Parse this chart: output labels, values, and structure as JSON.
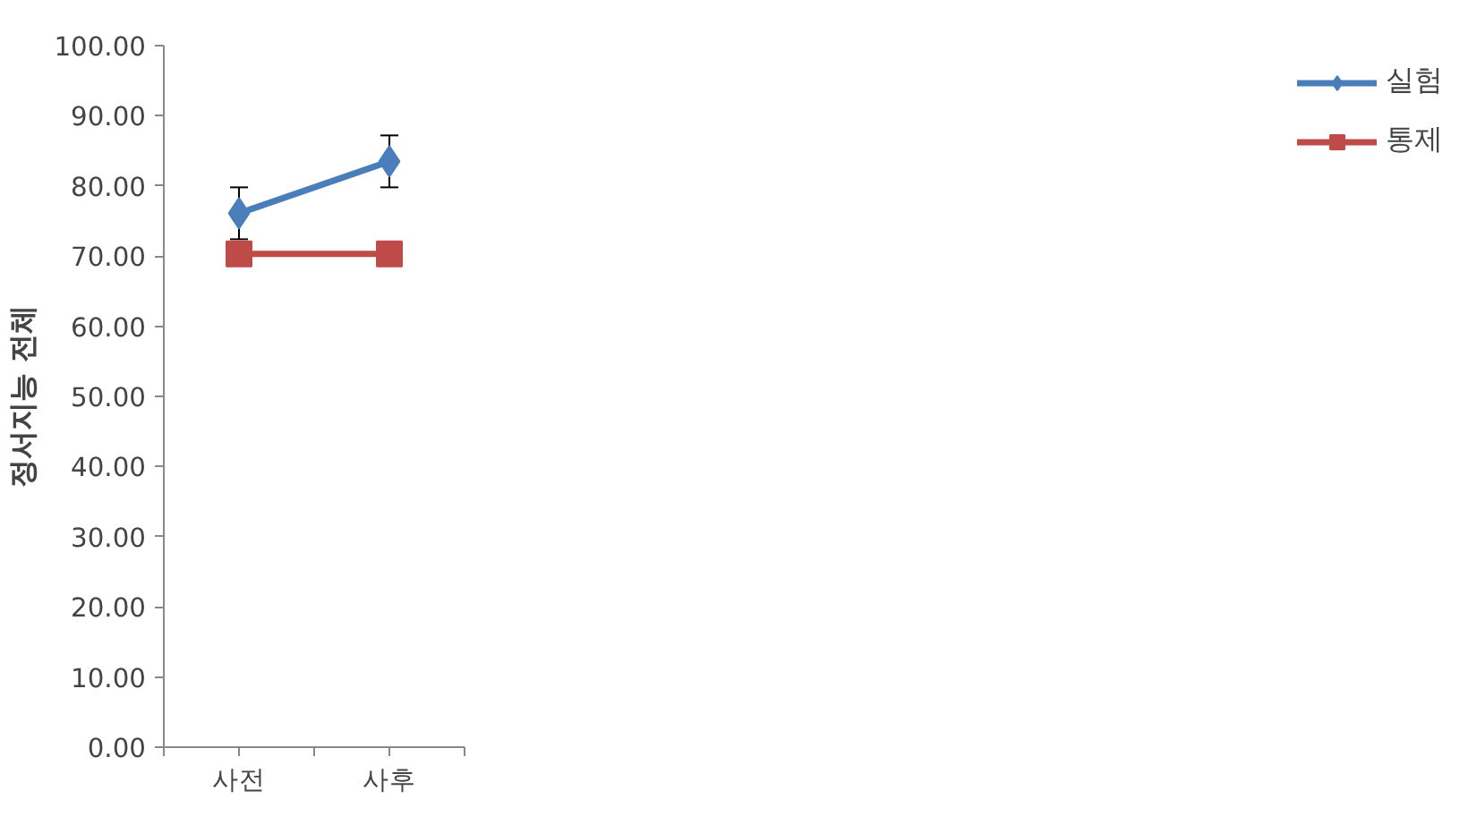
{
  "chart_data": {
    "type": "line",
    "ylabel": "정서지능 전체",
    "categories": [
      "사전",
      "사후"
    ],
    "series": [
      {
        "name": "실험",
        "color": "#4a7ebb",
        "values": [
          76.1,
          83.5
        ],
        "errors": [
          3.7,
          3.7
        ],
        "marker": "diamond"
      },
      {
        "name": "통제",
        "color": "#be4b48",
        "values": [
          70.3,
          70.3
        ],
        "marker": "square"
      }
    ],
    "ylim": [
      0,
      100
    ],
    "yticks": [
      {
        "value": 0,
        "label": "0.00"
      },
      {
        "value": 10,
        "label": "10.00"
      },
      {
        "value": 20,
        "label": "20.00"
      },
      {
        "value": 30,
        "label": "30.00"
      },
      {
        "value": 40,
        "label": "40.00"
      },
      {
        "value": 50,
        "label": "50.00"
      },
      {
        "value": 60,
        "label": "60.00"
      },
      {
        "value": 70,
        "label": "70.00"
      },
      {
        "value": 80,
        "label": "80.00"
      },
      {
        "value": 90,
        "label": "90.00"
      },
      {
        "value": 100,
        "label": "100.00"
      }
    ],
    "grid": false,
    "legend": "right",
    "line_style": "solid"
  }
}
